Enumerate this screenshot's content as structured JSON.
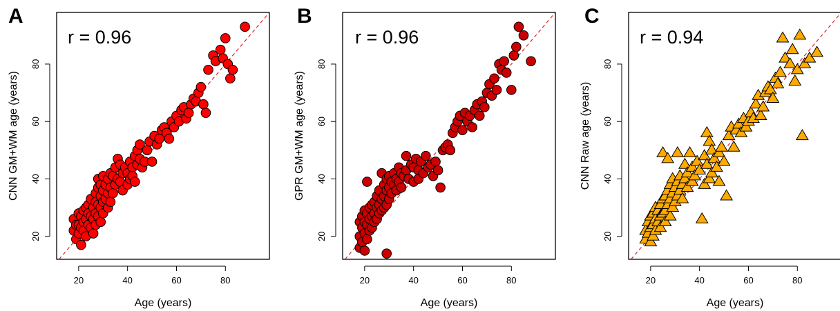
{
  "chart_data": [
    {
      "panel_label": "A",
      "type": "scatter",
      "annotation": "r = 0.96",
      "xlabel": "Age (years)",
      "ylabel": "CNN GM+WM age (years)",
      "xlim": [
        11,
        98
      ],
      "ylim": [
        12,
        98
      ],
      "xticks": [
        20,
        40,
        60,
        80
      ],
      "yticks": [
        20,
        40,
        60,
        80
      ],
      "marker": "circle",
      "marker_color": "#ff0000",
      "reference_line": {
        "type": "identity",
        "color": "#dd2222",
        "style": "dashed"
      },
      "points": [
        [
          18,
          26
        ],
        [
          18,
          22
        ],
        [
          19,
          24
        ],
        [
          19,
          19
        ],
        [
          20,
          28
        ],
        [
          20,
          24
        ],
        [
          20,
          21
        ],
        [
          21,
          27
        ],
        [
          21,
          23
        ],
        [
          21,
          17
        ],
        [
          22,
          29
        ],
        [
          22,
          25
        ],
        [
          22,
          22
        ],
        [
          23,
          30
        ],
        [
          23,
          26
        ],
        [
          23,
          20
        ],
        [
          24,
          31
        ],
        [
          24,
          28
        ],
        [
          24,
          24
        ],
        [
          25,
          27
        ],
        [
          25,
          23
        ],
        [
          25,
          33
        ],
        [
          26,
          30
        ],
        [
          26,
          26
        ],
        [
          26,
          21
        ],
        [
          27,
          35
        ],
        [
          27,
          32
        ],
        [
          27,
          28
        ],
        [
          27,
          24
        ],
        [
          28,
          40
        ],
        [
          28,
          37
        ],
        [
          28,
          31
        ],
        [
          28,
          27
        ],
        [
          29,
          38
        ],
        [
          29,
          34
        ],
        [
          29,
          30
        ],
        [
          29,
          25
        ],
        [
          30,
          41
        ],
        [
          30,
          36
        ],
        [
          30,
          32
        ],
        [
          30,
          28
        ],
        [
          31,
          38
        ],
        [
          31,
          33
        ],
        [
          32,
          40
        ],
        [
          32,
          35
        ],
        [
          32,
          30
        ],
        [
          33,
          42
        ],
        [
          33,
          37
        ],
        [
          33,
          32
        ],
        [
          34,
          41
        ],
        [
          34,
          35
        ],
        [
          35,
          44
        ],
        [
          35,
          38
        ],
        [
          36,
          47
        ],
        [
          36,
          40
        ],
        [
          37,
          45
        ],
        [
          37,
          39
        ],
        [
          38,
          42
        ],
        [
          38,
          36
        ],
        [
          39,
          44
        ],
        [
          40,
          42
        ],
        [
          40,
          38
        ],
        [
          41,
          46
        ],
        [
          41,
          40
        ],
        [
          42,
          44
        ],
        [
          42,
          41
        ],
        [
          43,
          48
        ],
        [
          43,
          39
        ],
        [
          44,
          50
        ],
        [
          44,
          45
        ],
        [
          45,
          52
        ],
        [
          45,
          47
        ],
        [
          46,
          44
        ],
        [
          47,
          46
        ],
        [
          48,
          50
        ],
        [
          49,
          53
        ],
        [
          50,
          46
        ],
        [
          51,
          55
        ],
        [
          52,
          52
        ],
        [
          53,
          54
        ],
        [
          54,
          57
        ],
        [
          55,
          58
        ],
        [
          56,
          56
        ],
        [
          57,
          54
        ],
        [
          58,
          60
        ],
        [
          59,
          58
        ],
        [
          60,
          62
        ],
        [
          61,
          60
        ],
        [
          62,
          64
        ],
        [
          63,
          65
        ],
        [
          64,
          61
        ],
        [
          65,
          63
        ],
        [
          66,
          66
        ],
        [
          67,
          68
        ],
        [
          68,
          67
        ],
        [
          69,
          70
        ],
        [
          70,
          72
        ],
        [
          71,
          66
        ],
        [
          72,
          63
        ],
        [
          73,
          78
        ],
        [
          75,
          83
        ],
        [
          76,
          81
        ],
        [
          78,
          85
        ],
        [
          79,
          82
        ],
        [
          80,
          89
        ],
        [
          81,
          80
        ],
        [
          82,
          75
        ],
        [
          83,
          78
        ],
        [
          88,
          93
        ]
      ]
    },
    {
      "panel_label": "B",
      "type": "scatter",
      "annotation": "r = 0.96",
      "xlabel": "Age (years)",
      "ylabel": "GPR GM+WM age (years)",
      "xlim": [
        11,
        98
      ],
      "ylim": [
        12,
        98
      ],
      "xticks": [
        20,
        40,
        60,
        80
      ],
      "yticks": [
        20,
        40,
        60,
        80
      ],
      "marker": "circle",
      "marker_color": "#cc0000",
      "reference_line": {
        "type": "identity",
        "color": "#dd2222",
        "style": "dashed"
      },
      "points": [
        [
          18,
          25
        ],
        [
          18,
          20
        ],
        [
          18,
          16
        ],
        [
          19,
          27
        ],
        [
          19,
          23
        ],
        [
          19,
          18
        ],
        [
          20,
          29
        ],
        [
          20,
          25
        ],
        [
          20,
          21
        ],
        [
          20,
          15
        ],
        [
          21,
          28
        ],
        [
          21,
          24
        ],
        [
          21,
          19
        ],
        [
          21,
          39
        ],
        [
          22,
          30
        ],
        [
          22,
          26
        ],
        [
          22,
          22
        ],
        [
          23,
          31
        ],
        [
          23,
          27
        ],
        [
          23,
          23
        ],
        [
          24,
          32
        ],
        [
          24,
          28
        ],
        [
          24,
          25
        ],
        [
          25,
          34
        ],
        [
          25,
          30
        ],
        [
          25,
          26
        ],
        [
          26,
          36
        ],
        [
          26,
          31
        ],
        [
          26,
          28
        ],
        [
          27,
          42
        ],
        [
          27,
          33
        ],
        [
          27,
          29
        ],
        [
          28,
          38
        ],
        [
          28,
          34
        ],
        [
          28,
          30
        ],
        [
          29,
          40
        ],
        [
          29,
          36
        ],
        [
          29,
          31
        ],
        [
          29,
          14
        ],
        [
          30,
          41
        ],
        [
          30,
          37
        ],
        [
          30,
          33
        ],
        [
          31,
          39
        ],
        [
          31,
          35
        ],
        [
          32,
          42
        ],
        [
          32,
          38
        ],
        [
          33,
          40
        ],
        [
          33,
          36
        ],
        [
          34,
          44
        ],
        [
          34,
          39
        ],
        [
          35,
          42
        ],
        [
          35,
          37
        ],
        [
          36,
          41
        ],
        [
          37,
          48
        ],
        [
          37,
          43
        ],
        [
          38,
          40
        ],
        [
          39,
          45
        ],
        [
          40,
          44
        ],
        [
          40,
          39
        ],
        [
          41,
          47
        ],
        [
          42,
          43
        ],
        [
          42,
          40
        ],
        [
          43,
          46
        ],
        [
          44,
          42
        ],
        [
          45,
          48
        ],
        [
          46,
          44
        ],
        [
          47,
          45
        ],
        [
          48,
          41
        ],
        [
          49,
          46
        ],
        [
          50,
          43
        ],
        [
          51,
          37
        ],
        [
          52,
          50
        ],
        [
          53,
          51
        ],
        [
          54,
          52
        ],
        [
          55,
          50
        ],
        [
          56,
          56
        ],
        [
          57,
          58
        ],
        [
          58,
          60
        ],
        [
          59,
          62
        ],
        [
          60,
          57
        ],
        [
          61,
          63
        ],
        [
          62,
          60
        ],
        [
          63,
          62
        ],
        [
          64,
          58
        ],
        [
          65,
          64
        ],
        [
          66,
          66
        ],
        [
          67,
          62
        ],
        [
          68,
          67
        ],
        [
          69,
          65
        ],
        [
          70,
          70
        ],
        [
          71,
          73
        ],
        [
          72,
          69
        ],
        [
          73,
          75
        ],
        [
          74,
          71
        ],
        [
          75,
          80
        ],
        [
          76,
          78
        ],
        [
          77,
          81
        ],
        [
          78,
          77
        ],
        [
          80,
          71
        ],
        [
          81,
          83
        ],
        [
          82,
          86
        ],
        [
          83,
          93
        ],
        [
          85,
          90
        ],
        [
          88,
          81
        ]
      ]
    },
    {
      "panel_label": "C",
      "type": "scatter",
      "annotation": "r = 0.94",
      "xlabel": "Age (years)",
      "ylabel": "CNN Raw age (years)",
      "xlim": [
        11,
        98
      ],
      "ylim": [
        12,
        98
      ],
      "xticks": [
        20,
        40,
        60,
        80
      ],
      "yticks": [
        20,
        40,
        60,
        80
      ],
      "marker": "triangle",
      "marker_color": "#ffaa00",
      "reference_line": {
        "type": "identity",
        "color": "#dd2222",
        "style": "dashed"
      },
      "points": [
        [
          18,
          22
        ],
        [
          18,
          19
        ],
        [
          19,
          25
        ],
        [
          19,
          21
        ],
        [
          20,
          27
        ],
        [
          20,
          23
        ],
        [
          20,
          18
        ],
        [
          21,
          28
        ],
        [
          21,
          24
        ],
        [
          21,
          20
        ],
        [
          22,
          30
        ],
        [
          22,
          26
        ],
        [
          22,
          22
        ],
        [
          23,
          29
        ],
        [
          23,
          25
        ],
        [
          24,
          31
        ],
        [
          24,
          27
        ],
        [
          24,
          23
        ],
        [
          25,
          49
        ],
        [
          25,
          33
        ],
        [
          25,
          28
        ],
        [
          26,
          34
        ],
        [
          26,
          29
        ],
        [
          26,
          25
        ],
        [
          27,
          47
        ],
        [
          27,
          36
        ],
        [
          27,
          31
        ],
        [
          28,
          38
        ],
        [
          28,
          33
        ],
        [
          28,
          27
        ],
        [
          29,
          40
        ],
        [
          29,
          35
        ],
        [
          29,
          30
        ],
        [
          30,
          37
        ],
        [
          30,
          32
        ],
        [
          31,
          49
        ],
        [
          31,
          39
        ],
        [
          31,
          34
        ],
        [
          32,
          41
        ],
        [
          32,
          36
        ],
        [
          33,
          38
        ],
        [
          33,
          33
        ],
        [
          34,
          45
        ],
        [
          34,
          40
        ],
        [
          35,
          42
        ],
        [
          35,
          37
        ],
        [
          36,
          49
        ],
        [
          37,
          44
        ],
        [
          37,
          39
        ],
        [
          38,
          41
        ],
        [
          39,
          46
        ],
        [
          40,
          43
        ],
        [
          41,
          26
        ],
        [
          42,
          48
        ],
        [
          42,
          38
        ],
        [
          43,
          56
        ],
        [
          43,
          45
        ],
        [
          44,
          53
        ],
        [
          44,
          40
        ],
        [
          45,
          50
        ],
        [
          45,
          42
        ],
        [
          46,
          47
        ],
        [
          47,
          44
        ],
        [
          48,
          49
        ],
        [
          48,
          39
        ],
        [
          49,
          51
        ],
        [
          50,
          46
        ],
        [
          51,
          34
        ],
        [
          52,
          55
        ],
        [
          53,
          58
        ],
        [
          54,
          51
        ],
        [
          55,
          57
        ],
        [
          56,
          59
        ],
        [
          57,
          56
        ],
        [
          58,
          61
        ],
        [
          59,
          58
        ],
        [
          60,
          60
        ],
        [
          61,
          63
        ],
        [
          62,
          61
        ],
        [
          63,
          66
        ],
        [
          64,
          69
        ],
        [
          65,
          62
        ],
        [
          66,
          65
        ],
        [
          67,
          70
        ],
        [
          68,
          72
        ],
        [
          69,
          71
        ],
        [
          70,
          68
        ],
        [
          71,
          75
        ],
        [
          72,
          73
        ],
        [
          73,
          77
        ],
        [
          74,
          89
        ],
        [
          75,
          82
        ],
        [
          77,
          80
        ],
        [
          78,
          85
        ],
        [
          79,
          74
        ],
        [
          80,
          78
        ],
        [
          81,
          90
        ],
        [
          82,
          55
        ],
        [
          83,
          80
        ],
        [
          85,
          82
        ],
        [
          88,
          84
        ]
      ]
    }
  ]
}
